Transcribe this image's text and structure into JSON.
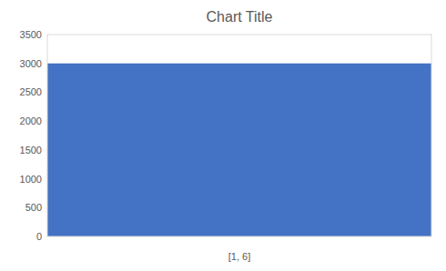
{
  "chart_data": {
    "type": "bar",
    "title": "Chart Title",
    "xlabel": "[1, 6]",
    "categories": [
      null
    ],
    "values": [
      3000
    ],
    "color": "#4472C4",
    "ylim": [
      0,
      3500
    ],
    "yticks": [
      0,
      500,
      1000,
      1500,
      2000,
      2500,
      3000,
      3500
    ],
    "grid": false
  }
}
